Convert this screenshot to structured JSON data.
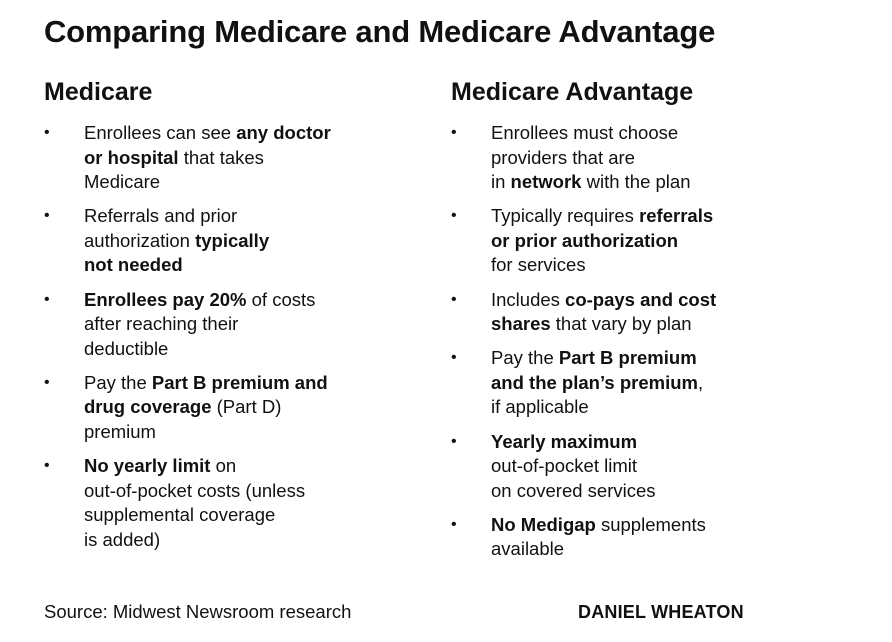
{
  "title": "Comparing Medicare and Medicare Advantage",
  "columns": {
    "medicare": {
      "heading": "Medicare",
      "items": [
        [
          {
            "t": "Enrollees can see "
          },
          {
            "t": "any doctor",
            "b": true
          },
          {
            "br": true
          },
          {
            "t": "or hospital",
            "b": true
          },
          {
            "t": " that takes"
          },
          {
            "br": true
          },
          {
            "t": "Medicare"
          }
        ],
        [
          {
            "t": "Referrals and prior"
          },
          {
            "br": true
          },
          {
            "t": "authorization "
          },
          {
            "t": "typically",
            "b": true
          },
          {
            "br": true
          },
          {
            "t": "not needed",
            "b": true
          }
        ],
        [
          {
            "t": "Enrollees pay 20%",
            "b": true
          },
          {
            "t": " of costs"
          },
          {
            "br": true
          },
          {
            "t": "after reaching their"
          },
          {
            "br": true
          },
          {
            "t": "deductible"
          }
        ],
        [
          {
            "t": "Pay the "
          },
          {
            "t": "Part B premium and",
            "b": true
          },
          {
            "br": true
          },
          {
            "t": "drug coverage",
            "b": true
          },
          {
            "t": " (Part D)"
          },
          {
            "br": true
          },
          {
            "t": "premium"
          }
        ],
        [
          {
            "t": "No yearly limit",
            "b": true
          },
          {
            "t": " on"
          },
          {
            "br": true
          },
          {
            "t": "out-of-pocket costs (unless"
          },
          {
            "br": true
          },
          {
            "t": "supplemental coverage"
          },
          {
            "br": true
          },
          {
            "t": "is added)"
          }
        ]
      ]
    },
    "advantage": {
      "heading": "Medicare Advantage",
      "items": [
        [
          {
            "t": "Enrollees must choose"
          },
          {
            "br": true
          },
          {
            "t": "providers that are"
          },
          {
            "br": true
          },
          {
            "t": "in "
          },
          {
            "t": "network",
            "b": true
          },
          {
            "t": " with the plan"
          }
        ],
        [
          {
            "t": "Typically requires "
          },
          {
            "t": "referrals",
            "b": true
          },
          {
            "br": true
          },
          {
            "t": "or prior authorization",
            "b": true
          },
          {
            "br": true
          },
          {
            "t": "for services"
          }
        ],
        [
          {
            "t": "Includes "
          },
          {
            "t": "co-pays and cost",
            "b": true
          },
          {
            "br": true
          },
          {
            "t": "shares",
            "b": true
          },
          {
            "t": " that vary by plan"
          }
        ],
        [
          {
            "t": "Pay the "
          },
          {
            "t": "Part B premium",
            "b": true
          },
          {
            "br": true
          },
          {
            "t": "and the plan’s premium",
            "b": true
          },
          {
            "t": ","
          },
          {
            "br": true
          },
          {
            "t": "if applicable"
          }
        ],
        [
          {
            "t": "Yearly maximum",
            "b": true
          },
          {
            "br": true
          },
          {
            "t": "out-of-pocket limit"
          },
          {
            "br": true
          },
          {
            "t": "on covered services"
          }
        ],
        [
          {
            "t": "No Medigap",
            "b": true
          },
          {
            "t": " supplements"
          },
          {
            "br": true
          },
          {
            "t": "available"
          }
        ]
      ]
    }
  },
  "bullet_char": "•",
  "footer": {
    "source": "Source: Midwest Newsroom research",
    "credit": "DANIEL WHEATON"
  }
}
